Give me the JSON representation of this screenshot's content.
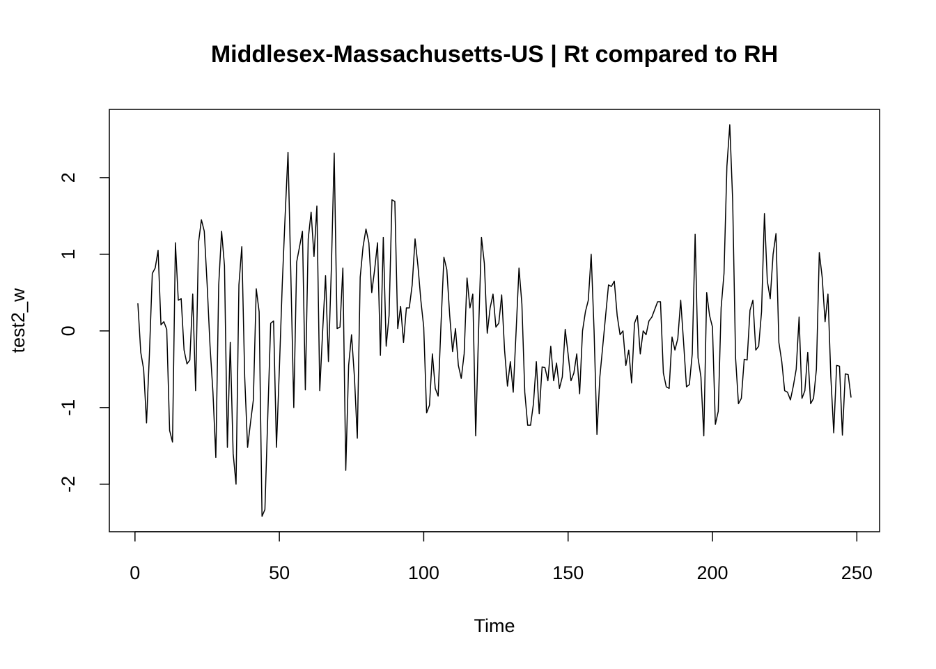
{
  "chart_data": {
    "type": "line",
    "title": "Middlesex-Massachusetts-US | Rt compared to RH",
    "x_label": "Time",
    "y_label": "test2_w",
    "x": [
      1,
      2,
      3,
      4,
      5,
      6,
      7,
      8,
      9,
      10,
      11,
      12,
      13,
      14,
      15,
      16,
      17,
      18,
      19,
      20,
      21,
      22,
      23,
      24,
      25,
      26,
      27,
      28,
      29,
      30,
      31,
      32,
      33,
      34,
      35,
      36,
      37,
      38,
      39,
      40,
      41,
      42,
      43,
      44,
      45,
      46,
      47,
      48,
      49,
      50,
      51,
      52,
      53,
      54,
      55,
      56,
      57,
      58,
      59,
      60,
      61,
      62,
      63,
      64,
      65,
      66,
      67,
      68,
      69,
      70,
      71,
      72,
      73,
      74,
      75,
      76,
      77,
      78,
      79,
      80,
      81,
      82,
      83,
      84,
      85,
      86,
      87,
      88,
      89,
      90,
      91,
      92,
      93,
      94,
      95,
      96,
      97,
      98,
      99,
      100,
      101,
      102,
      103,
      104,
      105,
      106,
      107,
      108,
      109,
      110,
      111,
      112,
      113,
      114,
      115,
      116,
      117,
      118,
      119,
      120,
      121,
      122,
      123,
      124,
      125,
      126,
      127,
      128,
      129,
      130,
      131,
      132,
      133,
      134,
      135,
      136,
      137,
      138,
      139,
      140,
      141,
      142,
      143,
      144,
      145,
      146,
      147,
      148,
      149,
      150,
      151,
      152,
      153,
      154,
      155,
      156,
      157,
      158,
      159,
      160,
      161,
      162,
      163,
      164,
      165,
      166,
      167,
      168,
      169,
      170,
      171,
      172,
      173,
      174,
      175,
      176,
      177,
      178,
      179,
      180,
      181,
      182,
      183,
      184,
      185,
      186,
      187,
      188,
      189,
      190,
      191,
      192,
      193,
      194,
      195,
      196,
      197,
      198,
      199,
      200,
      201,
      202,
      203,
      204,
      205,
      206,
      207,
      208,
      209,
      210,
      211,
      212,
      213,
      214,
      215,
      216,
      217,
      218,
      219,
      220,
      221,
      222,
      223,
      224,
      225,
      226,
      227,
      228,
      229,
      230,
      231,
      232,
      233,
      234,
      235,
      236,
      237,
      238,
      239,
      240,
      241,
      242,
      243,
      244,
      245,
      246,
      247,
      248
    ],
    "values": [
      0.36,
      -0.28,
      -0.5,
      -1.2,
      -0.3,
      0.75,
      0.82,
      1.05,
      0.08,
      0.12,
      0.02,
      -1.3,
      -1.45,
      1.15,
      0.4,
      0.42,
      -0.25,
      -0.43,
      -0.38,
      0.48,
      -0.78,
      1.15,
      1.45,
      1.3,
      0.6,
      -0.2,
      -0.8,
      -1.65,
      0.6,
      1.3,
      0.85,
      -1.52,
      -0.15,
      -1.6,
      -2.0,
      0.6,
      1.1,
      -0.6,
      -1.52,
      -1.2,
      -0.9,
      0.55,
      0.25,
      -2.42,
      -2.33,
      -1.1,
      0.1,
      0.13,
      -1.52,
      -0.5,
      0.6,
      1.5,
      2.33,
      0.7,
      -1.0,
      0.9,
      1.1,
      1.3,
      -0.77,
      1.2,
      1.55,
      0.97,
      1.63,
      -0.78,
      0.0,
      0.72,
      -0.4,
      0.8,
      2.32,
      0.03,
      0.05,
      0.82,
      -1.82,
      -0.45,
      -0.05,
      -0.6,
      -1.4,
      0.7,
      1.1,
      1.33,
      1.15,
      0.5,
      0.8,
      1.15,
      -0.32,
      1.22,
      -0.2,
      0.2,
      1.71,
      1.69,
      0.03,
      0.32,
      -0.15,
      0.3,
      0.3,
      0.6,
      1.2,
      0.85,
      0.4,
      0.05,
      -1.07,
      -0.97,
      -0.3,
      -0.75,
      -0.85,
      0.1,
      0.96,
      0.8,
      0.2,
      -0.27,
      0.03,
      -0.45,
      -0.62,
      -0.3,
      0.69,
      0.3,
      0.48,
      -1.37,
      0.0,
      1.22,
      0.88,
      -0.03,
      0.3,
      0.48,
      0.05,
      0.1,
      0.47,
      -0.25,
      -0.72,
      -0.4,
      -0.8,
      0.0,
      0.82,
      0.35,
      -0.8,
      -1.23,
      -1.23,
      -0.95,
      -0.4,
      -1.08,
      -0.47,
      -0.48,
      -0.65,
      -0.2,
      -0.65,
      -0.42,
      -0.75,
      -0.6,
      0.02,
      -0.3,
      -0.65,
      -0.55,
      -0.3,
      -0.82,
      0.0,
      0.25,
      0.4,
      1.0,
      0.0,
      -1.35,
      -0.6,
      -0.2,
      0.2,
      0.6,
      0.58,
      0.65,
      0.2,
      -0.05,
      0.0,
      -0.45,
      -0.25,
      -0.68,
      0.1,
      0.2,
      -0.3,
      0.0,
      -0.05,
      0.13,
      0.18,
      0.28,
      0.38,
      0.38,
      -0.55,
      -0.73,
      -0.75,
      -0.08,
      -0.25,
      -0.1,
      0.4,
      -0.15,
      -0.73,
      -0.7,
      -0.3,
      1.26,
      -0.35,
      -0.6,
      -1.37,
      0.5,
      0.2,
      0.05,
      -1.22,
      -1.05,
      0.3,
      0.75,
      2.15,
      2.69,
      1.7,
      -0.35,
      -0.95,
      -0.88,
      -0.37,
      -0.38,
      0.27,
      0.4,
      -0.25,
      -0.2,
      0.25,
      1.53,
      0.65,
      0.42,
      1.0,
      1.27,
      -0.15,
      -0.4,
      -0.78,
      -0.8,
      -0.9,
      -0.72,
      -0.5,
      0.18,
      -0.88,
      -0.78,
      -0.28,
      -0.95,
      -0.88,
      -0.5,
      1.02,
      0.7,
      0.12,
      0.48,
      -0.6,
      -1.33,
      -0.45,
      -0.46,
      -1.36,
      -0.56,
      -0.57,
      -0.87
    ],
    "color": "#000000",
    "xlim": [
      -8.88,
      257.88
    ],
    "xticks": [
      0,
      50,
      100,
      150,
      200,
      250
    ],
    "ylim": [
      -2.62,
      2.89
    ],
    "yticks": [
      -2,
      -1,
      0,
      1,
      2
    ],
    "grid": false
  }
}
